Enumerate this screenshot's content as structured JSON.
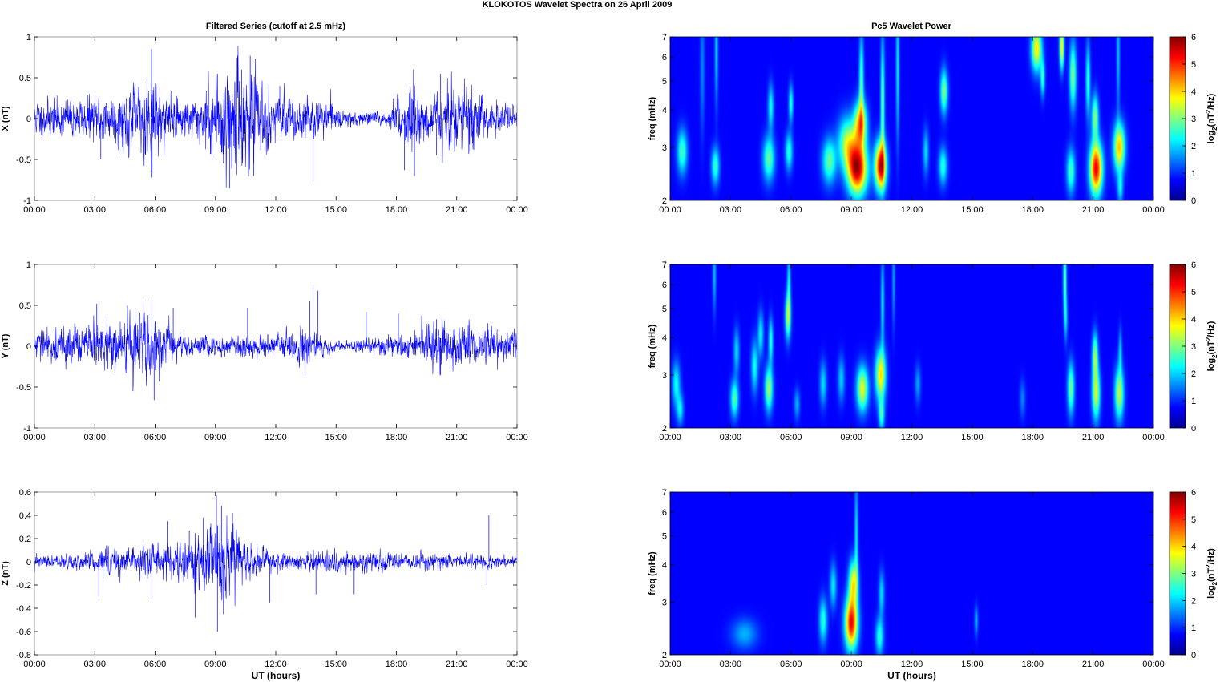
{
  "figure": {
    "title": "KLOKOTOS Wavelet Spectra on 26 April     2009",
    "left_title": "Filtered Series (cutoff at 2.5 mHz)",
    "right_title": "Pc5 Wavelet Power"
  },
  "chart_data": [
    {
      "type": "line",
      "name": "x-series",
      "ylabel": "X (nT)",
      "xlabel": "",
      "ylim": [
        -1,
        1
      ],
      "yticks": [
        -1,
        -0.5,
        0,
        0.5,
        1
      ],
      "ytick_labels": [
        "-1",
        "-0.5",
        "0",
        "0.5",
        "1"
      ],
      "xlim_hours": [
        0,
        24
      ],
      "xtick_labels": [
        "00:00",
        "03:00",
        "06:00",
        "09:00",
        "12:00",
        "15:00",
        "18:00",
        "21:00",
        "00:00"
      ],
      "line_color": "#0000ff",
      "envelope": [
        {
          "x": 0,
          "y": 0.2
        },
        {
          "x": 2,
          "y": 0.22
        },
        {
          "x": 4,
          "y": 0.28
        },
        {
          "x": 5.8,
          "y": 0.45
        },
        {
          "x": 6.5,
          "y": 0.25
        },
        {
          "x": 8,
          "y": 0.22
        },
        {
          "x": 9.5,
          "y": 0.6
        },
        {
          "x": 10.7,
          "y": 0.55
        },
        {
          "x": 12,
          "y": 0.22
        },
        {
          "x": 14,
          "y": 0.22
        },
        {
          "x": 15.5,
          "y": 0.08
        },
        {
          "x": 17.5,
          "y": 0.07
        },
        {
          "x": 18.8,
          "y": 0.42
        },
        {
          "x": 19.5,
          "y": 0.2
        },
        {
          "x": 20.5,
          "y": 0.35
        },
        {
          "x": 21.5,
          "y": 0.4
        },
        {
          "x": 22.5,
          "y": 0.18
        },
        {
          "x": 24,
          "y": 0.16
        }
      ],
      "peaks": [
        {
          "x": 5.82,
          "y": 0.85
        },
        {
          "x": 5.85,
          "y": -0.72
        },
        {
          "x": 5.6,
          "y": 0.48
        },
        {
          "x": 9.1,
          "y": 0.55
        },
        {
          "x": 9.7,
          "y": -0.85
        },
        {
          "x": 9.4,
          "y": -0.55
        },
        {
          "x": 10.73,
          "y": 0.77
        },
        {
          "x": 10.3,
          "y": 0.6
        },
        {
          "x": 10.9,
          "y": -0.7
        },
        {
          "x": 12.2,
          "y": 0.4
        },
        {
          "x": 13.85,
          "y": -0.77
        },
        {
          "x": 18.4,
          "y": -0.63
        },
        {
          "x": 18.85,
          "y": 0.6
        },
        {
          "x": 18.9,
          "y": -0.7
        },
        {
          "x": 20.2,
          "y": 0.55
        },
        {
          "x": 20.0,
          "y": -0.45
        },
        {
          "x": 4.2,
          "y": -0.45
        },
        {
          "x": 3.3,
          "y": -0.5
        }
      ],
      "seed": 11
    },
    {
      "type": "heatmap",
      "name": "x-wavelet",
      "ylabel": "freq (mHz)",
      "yscale": "log",
      "ylim": [
        2,
        7
      ],
      "ytick_labels": [
        "2",
        "3",
        "4",
        "5",
        "6",
        "7"
      ],
      "xlim_hours": [
        0,
        24
      ],
      "xtick_labels": [
        "00:00",
        "03:00",
        "06:00",
        "09:00",
        "12:00",
        "15:00",
        "18:00",
        "21:00",
        "00:00"
      ],
      "colorbar_label": "log2(nT2/Hz)",
      "clim": [
        0,
        6
      ],
      "colorbar_ticks": [
        "0",
        "1",
        "2",
        "3",
        "4",
        "5",
        "6"
      ],
      "colormap": "jet",
      "blobs": [
        {
          "t": 0.6,
          "f": 2.9,
          "st": 0.18,
          "sf": 0.12,
          "a": 2.2
        },
        {
          "t": 1.6,
          "f": 5.5,
          "st": 0.08,
          "sf": 0.35,
          "a": 0.9
        },
        {
          "t": 2.25,
          "f": 2.6,
          "st": 0.14,
          "sf": 0.1,
          "a": 2.1
        },
        {
          "t": 2.3,
          "f": 6.3,
          "st": 0.06,
          "sf": 0.3,
          "a": 1.4
        },
        {
          "t": 4.9,
          "f": 2.75,
          "st": 0.2,
          "sf": 0.12,
          "a": 2.4
        },
        {
          "t": 5.0,
          "f": 4.1,
          "st": 0.1,
          "sf": 0.12,
          "a": 1.8
        },
        {
          "t": 5.9,
          "f": 2.9,
          "st": 0.13,
          "sf": 0.1,
          "a": 2.0
        },
        {
          "t": 6.0,
          "f": 4.2,
          "st": 0.08,
          "sf": 0.1,
          "a": 1.9
        },
        {
          "t": 7.9,
          "f": 2.7,
          "st": 0.24,
          "sf": 0.12,
          "a": 2.4
        },
        {
          "t": 8.8,
          "f": 3.1,
          "st": 0.32,
          "sf": 0.14,
          "a": 2.8
        },
        {
          "t": 9.3,
          "f": 2.55,
          "st": 0.34,
          "sf": 0.14,
          "a": 5.6
        },
        {
          "t": 9.45,
          "f": 3.6,
          "st": 0.22,
          "sf": 0.12,
          "a": 3.8
        },
        {
          "t": 9.5,
          "f": 5.0,
          "st": 0.08,
          "sf": 0.25,
          "a": 2.2
        },
        {
          "t": 10.45,
          "f": 2.6,
          "st": 0.2,
          "sf": 0.13,
          "a": 5.4
        },
        {
          "t": 10.55,
          "f": 4.2,
          "st": 0.07,
          "sf": 0.35,
          "a": 2.4
        },
        {
          "t": 11.3,
          "f": 5.5,
          "st": 0.06,
          "sf": 0.4,
          "a": 1.6
        },
        {
          "t": 12.7,
          "f": 2.9,
          "st": 0.1,
          "sf": 0.12,
          "a": 1.5
        },
        {
          "t": 13.55,
          "f": 2.6,
          "st": 0.15,
          "sf": 0.1,
          "a": 2.0
        },
        {
          "t": 13.6,
          "f": 4.6,
          "st": 0.13,
          "sf": 0.12,
          "a": 2.6
        },
        {
          "t": 18.2,
          "f": 6.4,
          "st": 0.18,
          "sf": 0.12,
          "a": 3.6
        },
        {
          "t": 18.5,
          "f": 5.1,
          "st": 0.08,
          "sf": 0.1,
          "a": 2.0
        },
        {
          "t": 19.45,
          "f": 6.5,
          "st": 0.08,
          "sf": 0.12,
          "a": 3.6
        },
        {
          "t": 20.0,
          "f": 5.2,
          "st": 0.12,
          "sf": 0.18,
          "a": 2.6
        },
        {
          "t": 20.75,
          "f": 5.0,
          "st": 0.08,
          "sf": 0.2,
          "a": 2.0
        },
        {
          "t": 19.9,
          "f": 2.5,
          "st": 0.15,
          "sf": 0.12,
          "a": 2.2
        },
        {
          "t": 21.15,
          "f": 2.55,
          "st": 0.22,
          "sf": 0.14,
          "a": 5.3
        },
        {
          "t": 21.1,
          "f": 3.8,
          "st": 0.12,
          "sf": 0.12,
          "a": 2.6
        },
        {
          "t": 22.3,
          "f": 3.0,
          "st": 0.2,
          "sf": 0.13,
          "a": 3.8
        },
        {
          "t": 22.35,
          "f": 2.2,
          "st": 0.1,
          "sf": 0.08,
          "a": 1.6
        },
        {
          "t": 22.25,
          "f": 6.1,
          "st": 0.06,
          "sf": 0.3,
          "a": 1.3
        }
      ]
    },
    {
      "type": "line",
      "name": "y-series",
      "ylabel": "Y (nT)",
      "xlabel": "",
      "ylim": [
        -1,
        1
      ],
      "yticks": [
        -1,
        -0.5,
        0,
        0.5,
        1
      ],
      "ytick_labels": [
        "-1",
        "-0.5",
        "0",
        "0.5",
        "1"
      ],
      "xlim_hours": [
        0,
        24
      ],
      "xtick_labels": [
        "00:00",
        "03:00",
        "06:00",
        "09:00",
        "12:00",
        "15:00",
        "18:00",
        "21:00",
        "00:00"
      ],
      "line_color": "#0000ff",
      "envelope": [
        {
          "x": 0,
          "y": 0.18
        },
        {
          "x": 2,
          "y": 0.2
        },
        {
          "x": 4,
          "y": 0.3
        },
        {
          "x": 5.8,
          "y": 0.35
        },
        {
          "x": 7,
          "y": 0.15
        },
        {
          "x": 9,
          "y": 0.1
        },
        {
          "x": 10.5,
          "y": 0.15
        },
        {
          "x": 12,
          "y": 0.12
        },
        {
          "x": 13.5,
          "y": 0.22
        },
        {
          "x": 14.5,
          "y": 0.08
        },
        {
          "x": 15.5,
          "y": 0.05
        },
        {
          "x": 17.5,
          "y": 0.1
        },
        {
          "x": 19,
          "y": 0.15
        },
        {
          "x": 20.5,
          "y": 0.3
        },
        {
          "x": 22,
          "y": 0.2
        },
        {
          "x": 24,
          "y": 0.15
        }
      ],
      "peaks": [
        {
          "x": 5.8,
          "y": 0.57
        },
        {
          "x": 5.95,
          "y": -0.66
        },
        {
          "x": 5.0,
          "y": 0.45
        },
        {
          "x": 4.9,
          "y": -0.55
        },
        {
          "x": 3.1,
          "y": 0.52
        },
        {
          "x": 6.9,
          "y": 0.47
        },
        {
          "x": 10.6,
          "y": 0.47
        },
        {
          "x": 13.85,
          "y": 0.76
        },
        {
          "x": 14.1,
          "y": 0.68
        },
        {
          "x": 13.7,
          "y": 0.55
        },
        {
          "x": 16.5,
          "y": 0.42
        },
        {
          "x": 18.1,
          "y": 0.4
        },
        {
          "x": 20.0,
          "y": 0.33
        },
        {
          "x": 20.2,
          "y": -0.35
        }
      ],
      "seed": 29
    },
    {
      "type": "heatmap",
      "name": "y-wavelet",
      "ylabel": "freq (mHz)",
      "yscale": "log",
      "ylim": [
        2,
        7
      ],
      "ytick_labels": [
        "2",
        "3",
        "4",
        "5",
        "6",
        "7"
      ],
      "xlim_hours": [
        0,
        24
      ],
      "xtick_labels": [
        "00:00",
        "03:00",
        "06:00",
        "09:00",
        "12:00",
        "15:00",
        "18:00",
        "21:00",
        "00:00"
      ],
      "colorbar_label": "log2(nT2/Hz)",
      "clim": [
        0,
        6
      ],
      "colorbar_ticks": [
        "0",
        "1",
        "2",
        "3",
        "4",
        "5",
        "6"
      ],
      "colormap": "jet",
      "blobs": [
        {
          "t": 0.3,
          "f": 2.8,
          "st": 0.14,
          "sf": 0.12,
          "a": 1.8
        },
        {
          "t": 0.5,
          "f": 2.3,
          "st": 0.12,
          "sf": 0.08,
          "a": 1.6
        },
        {
          "t": 2.2,
          "f": 6.5,
          "st": 0.06,
          "sf": 0.2,
          "a": 1.3
        },
        {
          "t": 3.2,
          "f": 2.5,
          "st": 0.14,
          "sf": 0.1,
          "a": 2.3
        },
        {
          "t": 3.3,
          "f": 3.6,
          "st": 0.1,
          "sf": 0.12,
          "a": 1.5
        },
        {
          "t": 4.2,
          "f": 3.2,
          "st": 0.12,
          "sf": 0.14,
          "a": 1.8
        },
        {
          "t": 4.5,
          "f": 4.1,
          "st": 0.1,
          "sf": 0.12,
          "a": 1.7
        },
        {
          "t": 4.9,
          "f": 2.7,
          "st": 0.14,
          "sf": 0.12,
          "a": 2.8
        },
        {
          "t": 5.0,
          "f": 3.9,
          "st": 0.08,
          "sf": 0.12,
          "a": 2.0
        },
        {
          "t": 5.85,
          "f": 4.7,
          "st": 0.1,
          "sf": 0.12,
          "a": 2.8
        },
        {
          "t": 5.9,
          "f": 6.1,
          "st": 0.06,
          "sf": 0.18,
          "a": 1.6
        },
        {
          "t": 6.3,
          "f": 2.4,
          "st": 0.1,
          "sf": 0.08,
          "a": 1.2
        },
        {
          "t": 7.6,
          "f": 2.8,
          "st": 0.12,
          "sf": 0.12,
          "a": 1.5
        },
        {
          "t": 8.5,
          "f": 2.9,
          "st": 0.12,
          "sf": 0.12,
          "a": 1.4
        },
        {
          "t": 9.55,
          "f": 2.7,
          "st": 0.2,
          "sf": 0.12,
          "a": 3.3
        },
        {
          "t": 10.45,
          "f": 3.0,
          "st": 0.18,
          "sf": 0.14,
          "a": 3.6
        },
        {
          "t": 10.5,
          "f": 2.2,
          "st": 0.1,
          "sf": 0.08,
          "a": 2.0
        },
        {
          "t": 10.55,
          "f": 5.2,
          "st": 0.06,
          "sf": 0.25,
          "a": 1.6
        },
        {
          "t": 11.1,
          "f": 6.2,
          "st": 0.05,
          "sf": 0.25,
          "a": 1.1
        },
        {
          "t": 12.3,
          "f": 2.8,
          "st": 0.1,
          "sf": 0.1,
          "a": 1.1
        },
        {
          "t": 17.5,
          "f": 2.5,
          "st": 0.1,
          "sf": 0.1,
          "a": 0.9
        },
        {
          "t": 19.6,
          "f": 6.3,
          "st": 0.06,
          "sf": 0.18,
          "a": 2.4
        },
        {
          "t": 19.65,
          "f": 4.6,
          "st": 0.06,
          "sf": 0.12,
          "a": 1.4
        },
        {
          "t": 19.9,
          "f": 2.7,
          "st": 0.12,
          "sf": 0.14,
          "a": 2.5
        },
        {
          "t": 21.15,
          "f": 2.6,
          "st": 0.14,
          "sf": 0.14,
          "a": 3.1
        },
        {
          "t": 21.1,
          "f": 3.5,
          "st": 0.1,
          "sf": 0.12,
          "a": 2.6
        },
        {
          "t": 22.3,
          "f": 2.6,
          "st": 0.16,
          "sf": 0.14,
          "a": 3.0
        },
        {
          "t": 22.35,
          "f": 3.6,
          "st": 0.06,
          "sf": 0.12,
          "a": 1.3
        }
      ]
    },
    {
      "type": "line",
      "name": "z-series",
      "ylabel": "Z (nT)",
      "xlabel": "UT (hours)",
      "ylim": [
        -0.8,
        0.6
      ],
      "yticks": [
        -0.8,
        -0.6,
        -0.4,
        -0.2,
        0,
        0.2,
        0.4,
        0.6
      ],
      "ytick_labels": [
        "-0.8",
        "-0.6",
        "-0.4",
        "-0.2",
        "0",
        "0.2",
        "0.4",
        "0.6"
      ],
      "xlim_hours": [
        0,
        24
      ],
      "xtick_labels": [
        "00:00",
        "03:00",
        "06:00",
        "09:00",
        "12:00",
        "15:00",
        "18:00",
        "21:00",
        "00:00"
      ],
      "line_color": "#0000ff",
      "envelope": [
        {
          "x": 0,
          "y": 0.05
        },
        {
          "x": 2.5,
          "y": 0.06
        },
        {
          "x": 3.5,
          "y": 0.1
        },
        {
          "x": 5,
          "y": 0.1
        },
        {
          "x": 6.5,
          "y": 0.12
        },
        {
          "x": 8,
          "y": 0.2
        },
        {
          "x": 9.3,
          "y": 0.32
        },
        {
          "x": 10.5,
          "y": 0.15
        },
        {
          "x": 12,
          "y": 0.08
        },
        {
          "x": 14,
          "y": 0.08
        },
        {
          "x": 15.5,
          "y": 0.07
        },
        {
          "x": 17,
          "y": 0.08
        },
        {
          "x": 19,
          "y": 0.06
        },
        {
          "x": 21,
          "y": 0.06
        },
        {
          "x": 24,
          "y": 0.04
        }
      ],
      "peaks": [
        {
          "x": 9.05,
          "y": 0.57
        },
        {
          "x": 9.1,
          "y": -0.6
        },
        {
          "x": 8.0,
          "y": -0.48
        },
        {
          "x": 8.4,
          "y": 0.38
        },
        {
          "x": 9.4,
          "y": -0.45
        },
        {
          "x": 9.3,
          "y": 0.48
        },
        {
          "x": 9.85,
          "y": 0.42
        },
        {
          "x": 6.6,
          "y": 0.35
        },
        {
          "x": 7.7,
          "y": 0.27
        },
        {
          "x": 5.8,
          "y": -0.33
        },
        {
          "x": 3.2,
          "y": -0.3
        },
        {
          "x": 11.7,
          "y": -0.35
        },
        {
          "x": 14.0,
          "y": -0.28
        },
        {
          "x": 15.9,
          "y": -0.28
        },
        {
          "x": 22.6,
          "y": 0.4
        },
        {
          "x": 22.5,
          "y": -0.2
        }
      ],
      "seed": 47
    },
    {
      "type": "heatmap",
      "name": "z-wavelet",
      "ylabel": "freq (mHz)",
      "yscale": "log",
      "ylim": [
        2,
        7
      ],
      "ytick_labels": [
        "2",
        "3",
        "4",
        "5",
        "6",
        "7"
      ],
      "xlim_hours": [
        0,
        24
      ],
      "xtick_labels": [
        "00:00",
        "03:00",
        "06:00",
        "09:00",
        "12:00",
        "15:00",
        "18:00",
        "21:00",
        "00:00"
      ],
      "xlabel": "UT (hours)",
      "colorbar_label": "log2(nT2/Hz)",
      "clim": [
        0,
        6
      ],
      "colorbar_ticks": [
        "0",
        "1",
        "2",
        "3",
        "4",
        "5",
        "6"
      ],
      "colormap": "jet",
      "blobs": [
        {
          "t": 3.7,
          "f": 2.35,
          "st": 0.45,
          "sf": 0.08,
          "a": 1.2
        },
        {
          "t": 7.6,
          "f": 2.6,
          "st": 0.14,
          "sf": 0.12,
          "a": 2.0
        },
        {
          "t": 8.1,
          "f": 3.4,
          "st": 0.12,
          "sf": 0.12,
          "a": 1.6
        },
        {
          "t": 9.0,
          "f": 2.55,
          "st": 0.22,
          "sf": 0.14,
          "a": 5.2
        },
        {
          "t": 9.1,
          "f": 3.5,
          "st": 0.16,
          "sf": 0.12,
          "a": 3.2
        },
        {
          "t": 9.25,
          "f": 5.0,
          "st": 0.06,
          "sf": 0.3,
          "a": 1.6
        },
        {
          "t": 10.4,
          "f": 2.3,
          "st": 0.14,
          "sf": 0.1,
          "a": 2.0
        },
        {
          "t": 10.5,
          "f": 3.2,
          "st": 0.1,
          "sf": 0.12,
          "a": 1.5
        },
        {
          "t": 15.2,
          "f": 2.6,
          "st": 0.06,
          "sf": 0.08,
          "a": 1.3
        }
      ]
    }
  ]
}
